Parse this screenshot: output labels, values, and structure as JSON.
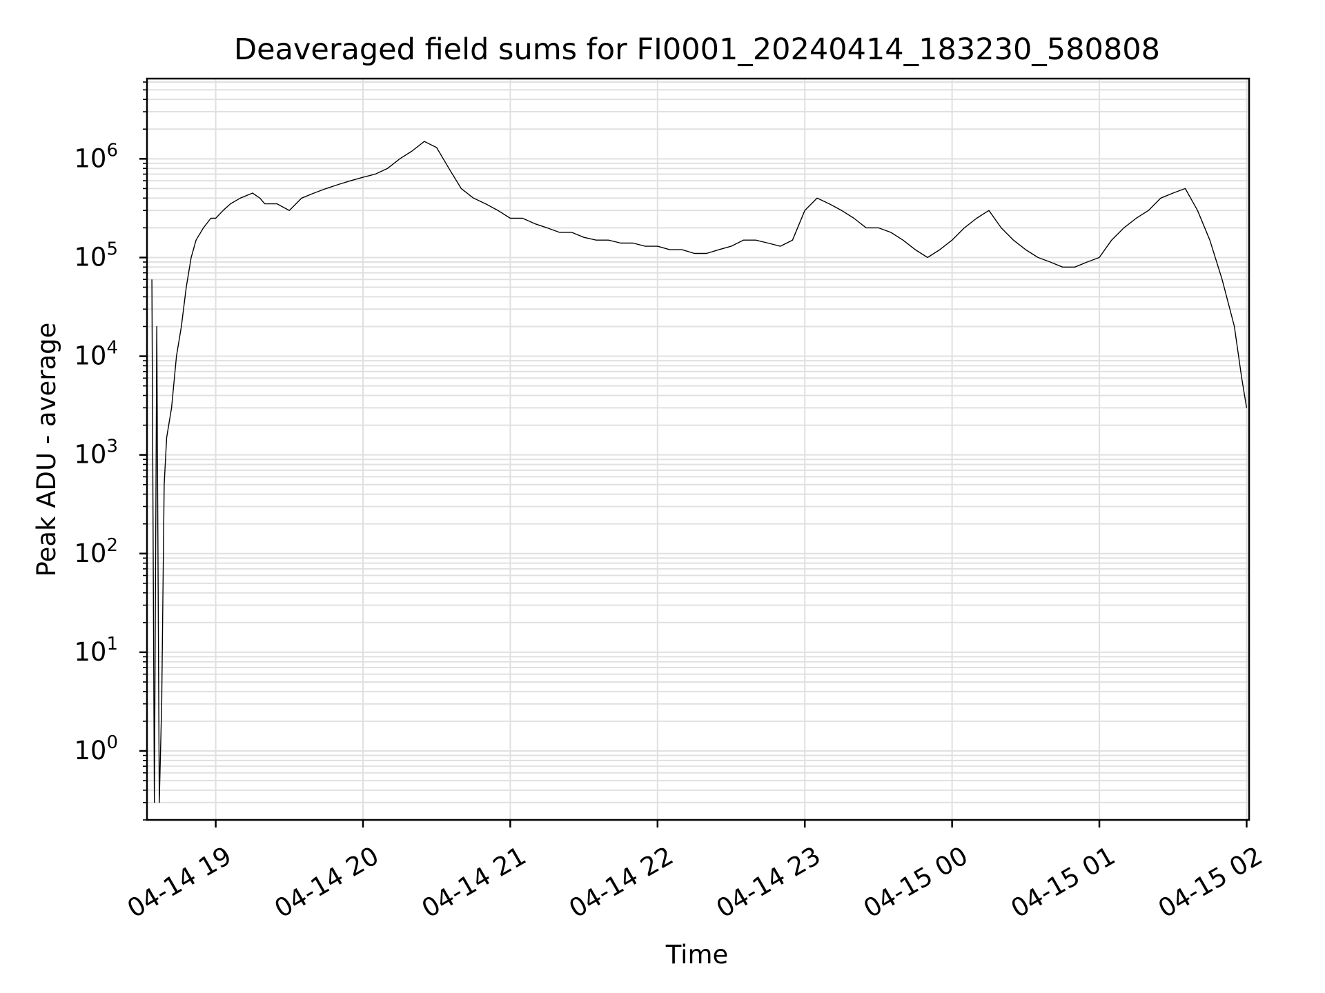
{
  "chart_data": {
    "type": "line",
    "title": "Deaveraged field sums for FI0001_20240414_183230_580808",
    "xlabel": "Time",
    "ylabel": "Peak ADU - average",
    "yscale": "log",
    "grid": true,
    "ylim": [
      0.2,
      6500000
    ],
    "xlim": [
      "2024-04-14 18:32",
      "2024-04-15 02:01"
    ],
    "x_ticks": [
      {
        "value": "2024-04-14 19:00",
        "label": "04-14 19"
      },
      {
        "value": "2024-04-14 20:00",
        "label": "04-14 20"
      },
      {
        "value": "2024-04-14 21:00",
        "label": "04-14 21"
      },
      {
        "value": "2024-04-14 22:00",
        "label": "04-14 22"
      },
      {
        "value": "2024-04-14 23:00",
        "label": "04-14 23"
      },
      {
        "value": "2024-04-15 00:00",
        "label": "04-15 00"
      },
      {
        "value": "2024-04-15 01:00",
        "label": "04-15 01"
      },
      {
        "value": "2024-04-15 02:00",
        "label": "04-15 02"
      }
    ],
    "y_ticks": [
      {
        "value": 1,
        "base": "10",
        "exp": "0"
      },
      {
        "value": 10,
        "base": "10",
        "exp": "1"
      },
      {
        "value": 100,
        "base": "10",
        "exp": "2"
      },
      {
        "value": 1000,
        "base": "10",
        "exp": "3"
      },
      {
        "value": 10000,
        "base": "10",
        "exp": "4"
      },
      {
        "value": 100000,
        "base": "10",
        "exp": "5"
      },
      {
        "value": 1000000,
        "base": "10",
        "exp": "6"
      }
    ],
    "series": [
      {
        "color": "#000000",
        "x": [
          "2024-04-14 18:34",
          "2024-04-14 18:35",
          "2024-04-14 18:36",
          "2024-04-14 18:37",
          "2024-04-14 18:38",
          "2024-04-14 18:39",
          "2024-04-14 18:40",
          "2024-04-14 18:42",
          "2024-04-14 18:44",
          "2024-04-14 18:46",
          "2024-04-14 18:48",
          "2024-04-14 18:50",
          "2024-04-14 18:52",
          "2024-04-14 18:55",
          "2024-04-14 18:58",
          "2024-04-14 19:00",
          "2024-04-14 19:03",
          "2024-04-14 19:06",
          "2024-04-14 19:10",
          "2024-04-14 19:15",
          "2024-04-14 19:18",
          "2024-04-14 19:20",
          "2024-04-14 19:25",
          "2024-04-14 19:30",
          "2024-04-14 19:35",
          "2024-04-14 19:40",
          "2024-04-14 19:45",
          "2024-04-14 19:50",
          "2024-04-14 19:55",
          "2024-04-14 20:00",
          "2024-04-14 20:05",
          "2024-04-14 20:10",
          "2024-04-14 20:15",
          "2024-04-14 20:20",
          "2024-04-14 20:25",
          "2024-04-14 20:30",
          "2024-04-14 20:35",
          "2024-04-14 20:40",
          "2024-04-14 20:45",
          "2024-04-14 20:50",
          "2024-04-14 20:55",
          "2024-04-14 21:00",
          "2024-04-14 21:05",
          "2024-04-14 21:10",
          "2024-04-14 21:15",
          "2024-04-14 21:20",
          "2024-04-14 21:25",
          "2024-04-14 21:30",
          "2024-04-14 21:35",
          "2024-04-14 21:40",
          "2024-04-14 21:45",
          "2024-04-14 21:50",
          "2024-04-14 21:55",
          "2024-04-14 22:00",
          "2024-04-14 22:05",
          "2024-04-14 22:10",
          "2024-04-14 22:15",
          "2024-04-14 22:20",
          "2024-04-14 22:25",
          "2024-04-14 22:30",
          "2024-04-14 22:35",
          "2024-04-14 22:40",
          "2024-04-14 22:45",
          "2024-04-14 22:50",
          "2024-04-14 22:55",
          "2024-04-14 23:00",
          "2024-04-14 23:05",
          "2024-04-14 23:10",
          "2024-04-14 23:15",
          "2024-04-14 23:20",
          "2024-04-14 23:25",
          "2024-04-14 23:30",
          "2024-04-14 23:35",
          "2024-04-14 23:40",
          "2024-04-14 23:45",
          "2024-04-14 23:50",
          "2024-04-14 23:55",
          "2024-04-15 00:00",
          "2024-04-15 00:05",
          "2024-04-15 00:10",
          "2024-04-15 00:15",
          "2024-04-15 00:20",
          "2024-04-15 00:25",
          "2024-04-15 00:30",
          "2024-04-15 00:35",
          "2024-04-15 00:40",
          "2024-04-15 00:45",
          "2024-04-15 00:50",
          "2024-04-15 00:55",
          "2024-04-15 01:00",
          "2024-04-15 01:05",
          "2024-04-15 01:10",
          "2024-04-15 01:15",
          "2024-04-15 01:20",
          "2024-04-15 01:25",
          "2024-04-15 01:30",
          "2024-04-15 01:35",
          "2024-04-15 01:40",
          "2024-04-15 01:45",
          "2024-04-15 01:50",
          "2024-04-15 01:55",
          "2024-04-15 01:58",
          "2024-04-15 02:00"
        ],
        "values": [
          60000,
          0.3,
          20000,
          0.3,
          3,
          500,
          1500,
          3000,
          10000,
          20000,
          50000,
          100000,
          150000,
          200000,
          250000,
          250000,
          300000,
          350000,
          400000,
          450000,
          400000,
          350000,
          350000,
          300000,
          400000,
          450000,
          500000,
          550000,
          600000,
          650000,
          700000,
          800000,
          1000000,
          1200000,
          1500000,
          1300000,
          800000,
          500000,
          400000,
          350000,
          300000,
          250000,
          250000,
          220000,
          200000,
          180000,
          180000,
          160000,
          150000,
          150000,
          140000,
          140000,
          130000,
          130000,
          120000,
          120000,
          110000,
          110000,
          120000,
          130000,
          150000,
          150000,
          140000,
          130000,
          150000,
          300000,
          400000,
          350000,
          300000,
          250000,
          200000,
          200000,
          180000,
          150000,
          120000,
          100000,
          120000,
          150000,
          200000,
          250000,
          300000,
          200000,
          150000,
          120000,
          100000,
          90000,
          80000,
          80000,
          90000,
          100000,
          150000,
          200000,
          250000,
          300000,
          400000,
          450000,
          500000,
          300000,
          150000,
          60000,
          20000,
          6000,
          3000
        ]
      }
    ]
  }
}
